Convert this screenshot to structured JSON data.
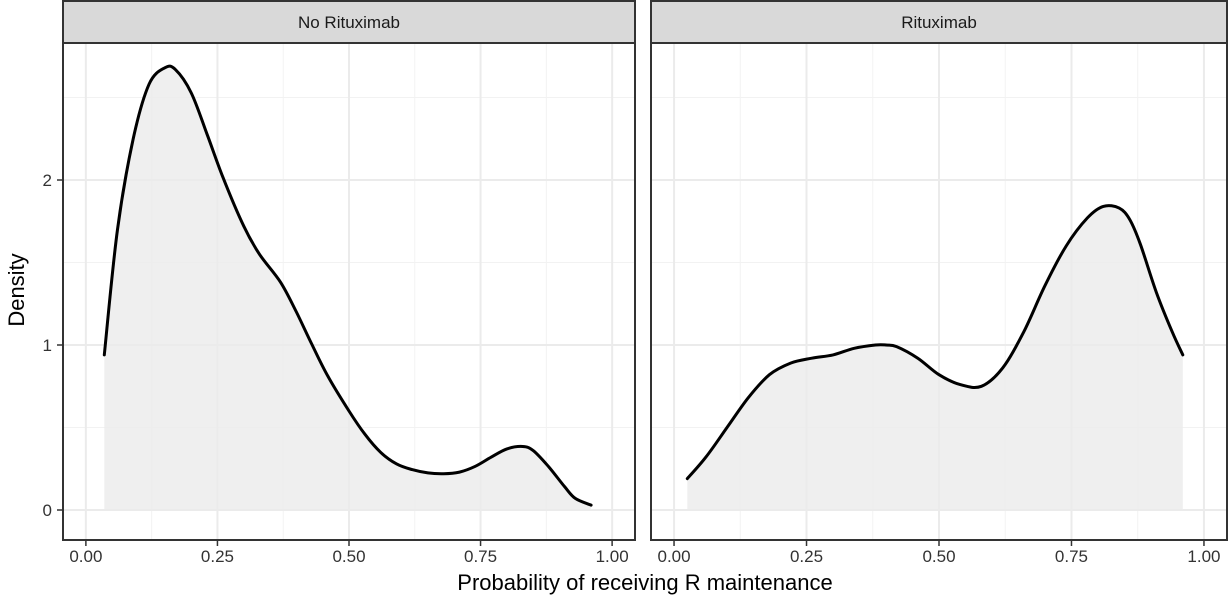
{
  "chart_data": {
    "type": "area",
    "facet_var_values": [
      "No Rituximab",
      "Rituximab"
    ],
    "xlabel": "Probability of receiving R maintenance",
    "ylabel": "Density",
    "xlim": [
      0,
      1
    ],
    "ylim": [
      0,
      2.8
    ],
    "x_ticks": [
      "0.00",
      "0.25",
      "0.50",
      "0.75",
      "1.00"
    ],
    "y_ticks": [
      "0",
      "1",
      "2"
    ],
    "grid": true,
    "fill_color": "#ebebeb",
    "line_color": "#000000",
    "strip_fill": "#d9d9d9",
    "panels": [
      {
        "name": "No Rituximab",
        "x": [
          0.035,
          0.06,
          0.09,
          0.12,
          0.15,
          0.17,
          0.2,
          0.23,
          0.26,
          0.3,
          0.33,
          0.37,
          0.4,
          0.43,
          0.46,
          0.5,
          0.53,
          0.56,
          0.59,
          0.62,
          0.65,
          0.68,
          0.71,
          0.74,
          0.77,
          0.8,
          0.83,
          0.85,
          0.88,
          0.91,
          0.93,
          0.96
        ],
        "y": [
          0.94,
          1.7,
          2.25,
          2.58,
          2.68,
          2.67,
          2.53,
          2.28,
          2.02,
          1.72,
          1.55,
          1.38,
          1.2,
          1.0,
          0.81,
          0.6,
          0.46,
          0.35,
          0.28,
          0.245,
          0.225,
          0.22,
          0.23,
          0.265,
          0.32,
          0.37,
          0.385,
          0.36,
          0.26,
          0.14,
          0.07,
          0.03
        ]
      },
      {
        "name": "Rituximab",
        "x": [
          0.025,
          0.06,
          0.1,
          0.14,
          0.18,
          0.22,
          0.26,
          0.3,
          0.34,
          0.38,
          0.4,
          0.42,
          0.46,
          0.5,
          0.54,
          0.58,
          0.62,
          0.66,
          0.7,
          0.74,
          0.78,
          0.81,
          0.84,
          0.86,
          0.88,
          0.91,
          0.94,
          0.96
        ],
        "y": [
          0.19,
          0.32,
          0.5,
          0.68,
          0.82,
          0.89,
          0.92,
          0.94,
          0.98,
          1.0,
          1.0,
          0.99,
          0.92,
          0.82,
          0.76,
          0.75,
          0.86,
          1.08,
          1.36,
          1.6,
          1.77,
          1.84,
          1.83,
          1.76,
          1.61,
          1.32,
          1.08,
          0.94
        ]
      }
    ]
  }
}
